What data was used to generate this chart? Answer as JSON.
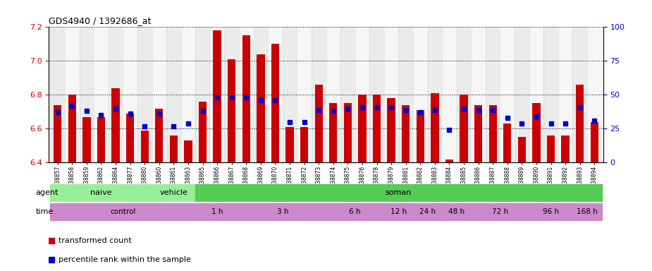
{
  "title": "GDS4940 / 1392686_at",
  "samples": [
    "GSM338857",
    "GSM338858",
    "GSM338859",
    "GSM338862",
    "GSM338864",
    "GSM338877",
    "GSM338880",
    "GSM338860",
    "GSM338861",
    "GSM338863",
    "GSM338865",
    "GSM338866",
    "GSM338867",
    "GSM338868",
    "GSM338869",
    "GSM338870",
    "GSM338871",
    "GSM338872",
    "GSM338873",
    "GSM338874",
    "GSM338875",
    "GSM338876",
    "GSM338878",
    "GSM338879",
    "GSM338881",
    "GSM338882",
    "GSM338883",
    "GSM338884",
    "GSM338885",
    "GSM338886",
    "GSM338887",
    "GSM338888",
    "GSM338889",
    "GSM338890",
    "GSM338891",
    "GSM338892",
    "GSM338893",
    "GSM338894"
  ],
  "bar_values": [
    6.74,
    6.8,
    6.67,
    6.67,
    6.84,
    6.69,
    6.59,
    6.72,
    6.56,
    6.53,
    6.76,
    7.18,
    7.01,
    7.15,
    7.04,
    7.1,
    6.61,
    6.61,
    6.86,
    6.75,
    6.75,
    6.8,
    6.8,
    6.78,
    6.74,
    6.71,
    6.81,
    6.42,
    6.8,
    6.74,
    6.74,
    6.63,
    6.55,
    6.75,
    6.56,
    6.56,
    6.86,
    6.64
  ],
  "percentile_pct": [
    37,
    42,
    38,
    35,
    40,
    36,
    27,
    36,
    27,
    29,
    38,
    48,
    48,
    48,
    46,
    46,
    30,
    30,
    39,
    38,
    40,
    41,
    41,
    41,
    39,
    37,
    39,
    24,
    40,
    39,
    39,
    33,
    29,
    34,
    29,
    29,
    41,
    31
  ],
  "ylim": [
    6.4,
    7.2
  ],
  "yticks_left": [
    6.4,
    6.6,
    6.8,
    7.0,
    7.2
  ],
  "yticks_right": [
    0,
    25,
    50,
    75,
    100
  ],
  "bar_color": "#cc0000",
  "percentile_color": "#0000cc",
  "background_color": "#ffffff",
  "agent_naive_color": "#99ee99",
  "agent_soman_color": "#55cc55",
  "time_color": "#cc88cc",
  "axis_label_color_left": "#cc0000",
  "axis_label_color_right": "#0000cc",
  "agent_groups": [
    {
      "label": "naive",
      "start": 0,
      "end": 7,
      "color": "#99ee99"
    },
    {
      "label": "vehicle",
      "start": 7,
      "end": 10,
      "color": "#99ee99"
    },
    {
      "label": "soman",
      "start": 10,
      "end": 38,
      "color": "#55cc55"
    }
  ],
  "time_groups": [
    {
      "label": "control",
      "start": 0,
      "end": 10,
      "color": "#cc88cc"
    },
    {
      "label": "1 h",
      "start": 10,
      "end": 13,
      "color": "#cc88cc"
    },
    {
      "label": "3 h",
      "start": 13,
      "end": 19,
      "color": "#cc88cc"
    },
    {
      "label": "6 h",
      "start": 19,
      "end": 23,
      "color": "#cc88cc"
    },
    {
      "label": "12 h",
      "start": 23,
      "end": 25,
      "color": "#cc88cc"
    },
    {
      "label": "24 h",
      "start": 25,
      "end": 27,
      "color": "#cc88cc"
    },
    {
      "label": "48 h",
      "start": 27,
      "end": 29,
      "color": "#cc88cc"
    },
    {
      "label": "72 h",
      "start": 29,
      "end": 33,
      "color": "#cc88cc"
    },
    {
      "label": "96 h",
      "start": 33,
      "end": 36,
      "color": "#cc88cc"
    },
    {
      "label": "168 h",
      "start": 36,
      "end": 38,
      "color": "#cc88cc"
    }
  ]
}
